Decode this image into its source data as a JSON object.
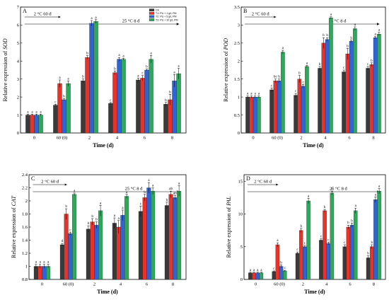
{
  "colors": {
    "series": [
      "#3a3a3a",
      "#e8322a",
      "#2f63d6",
      "#2ea85a"
    ],
    "axis": "#000000"
  },
  "chart_data": [
    {
      "type": "bar",
      "panel_letter": "A",
      "ylabel_prefix": "Relative expression of ",
      "ylabel_gene": "SOD",
      "xlabel": "Time (d)",
      "categories": [
        "0",
        "60 (0)",
        "2",
        "4",
        "6",
        "8"
      ],
      "ylim": [
        0,
        7
      ],
      "yticks": [
        0,
        1,
        2,
        3,
        4,
        5,
        6,
        7
      ],
      "annotations": {
        "cold_label": "2 °C 60 d",
        "storage_label": "25 °C 8 d"
      },
      "legend": {
        "placement": "top-right",
        "entries": [
          "CK",
          "T1: PU + 1 g/L PM",
          "T2: PU + 5 g/L PM",
          "T3: PU + 10 g/L PM"
        ]
      },
      "series": [
        {
          "name": "CK",
          "values": [
            1.0,
            1.55,
            2.9,
            1.65,
            2.95,
            1.6
          ],
          "errors": [
            0.05,
            0.05,
            0.1,
            0.05,
            0.1,
            0.1
          ],
          "letters": [
            "a",
            "c",
            "b",
            "c",
            "a",
            "b"
          ]
        },
        {
          "name": "T1: PU + 1 g/L PM",
          "values": [
            1.0,
            2.75,
            4.2,
            3.35,
            3.05,
            1.85
          ],
          "errors": [
            0.05,
            0.2,
            0.1,
            0.1,
            0.15,
            0.3
          ],
          "letters": [
            "a",
            "a",
            "b",
            "b",
            "c",
            "b"
          ]
        },
        {
          "name": "T2: PU + 5 g/L PM",
          "values": [
            1.0,
            1.85,
            6.1,
            4.1,
            3.5,
            2.9
          ],
          "errors": [
            0.05,
            0.05,
            0.15,
            0.1,
            0.05,
            0.35
          ],
          "letters": [
            "a",
            "b",
            "a",
            "a",
            "b",
            "a"
          ]
        },
        {
          "name": "T3: PU + 10 g/L PM",
          "values": [
            1.0,
            2.75,
            6.2,
            4.1,
            4.1,
            3.3
          ],
          "errors": [
            0.05,
            0.15,
            0.1,
            0.05,
            0.2,
            0.3
          ],
          "letters": [
            "a",
            "a",
            "a",
            "a",
            "a",
            "a"
          ]
        }
      ]
    },
    {
      "type": "bar",
      "panel_letter": "B",
      "ylabel_prefix": "Relative expression of ",
      "ylabel_gene": "POD",
      "xlabel": "Time (d)",
      "categories": [
        "0",
        "60 (0)",
        "2",
        "4",
        "6",
        "8"
      ],
      "ylim": [
        0,
        3.5
      ],
      "yticks": [
        0.0,
        0.5,
        1.0,
        1.5,
        2.0,
        2.5,
        3.0,
        3.5
      ],
      "annotations": {
        "cold_label": "2 °C 60 d",
        "storage_label": "25 °C 8 d"
      },
      "series": [
        {
          "name": "CK",
          "values": [
            1.0,
            1.2,
            1.05,
            1.8,
            1.7,
            1.8
          ],
          "errors": [
            0.03,
            0.05,
            0.05,
            0.05,
            0.05,
            0.05
          ],
          "letters": [
            "a",
            "c",
            "c",
            "b",
            "c",
            "c"
          ]
        },
        {
          "name": "T1: PU + 1 g/L PM",
          "values": [
            1.0,
            1.45,
            1.5,
            2.5,
            2.2,
            1.9
          ],
          "errors": [
            0.03,
            0.05,
            0.1,
            0.15,
            0.15,
            0.05
          ],
          "letters": [
            "a",
            "bc",
            "b",
            "b",
            "b",
            "b"
          ]
        },
        {
          "name": "T2: PU + 5 g/L PM",
          "values": [
            1.0,
            1.45,
            1.3,
            2.6,
            2.55,
            2.65
          ],
          "errors": [
            0.03,
            0.05,
            0.05,
            0.05,
            0.03,
            0.03
          ],
          "letters": [
            "a",
            "b",
            "c",
            "b",
            "b",
            "a"
          ]
        },
        {
          "name": "T3: PU + 10 g/L PM",
          "values": [
            1.0,
            2.25,
            1.85,
            3.2,
            2.9,
            2.75
          ],
          "errors": [
            0.03,
            0.05,
            0.03,
            0.03,
            0.05,
            0.05
          ],
          "letters": [
            "a",
            "a",
            "a",
            "a",
            "a",
            "a"
          ]
        }
      ]
    },
    {
      "type": "bar",
      "panel_letter": "C",
      "ylabel_prefix": "Relative expression of ",
      "ylabel_gene": "CAT",
      "xlabel": "Time (d)",
      "categories": [
        "0",
        "60 (0)",
        "2",
        "4",
        "6",
        "8"
      ],
      "ylim": [
        0.8,
        2.4
      ],
      "yticks": [
        0.8,
        1.0,
        1.2,
        1.4,
        1.6,
        1.8,
        2.0,
        2.2,
        2.4
      ],
      "annotations": {
        "cold_label": "2 °C 60 d",
        "storage_label": "25 °C 8 d"
      },
      "series": [
        {
          "name": "CK",
          "values": [
            1.0,
            1.33,
            1.57,
            1.66,
            1.84,
            1.93
          ],
          "errors": [
            0.03,
            0.02,
            0.05,
            0.08,
            0.08,
            0.05
          ],
          "letters": [
            "a",
            "d",
            "b",
            "a",
            "c",
            "b"
          ]
        },
        {
          "name": "T1: PU + 1 g/L PM",
          "values": [
            1.0,
            1.8,
            1.68,
            1.6,
            2.05,
            2.1
          ],
          "errors": [
            0.03,
            0.08,
            0.05,
            0.1,
            0.05,
            0.05
          ],
          "letters": [
            "a",
            "b",
            "b",
            "a",
            "b",
            "ab"
          ]
        },
        {
          "name": "T2: PU + 5 g/L PM",
          "values": [
            1.0,
            1.5,
            1.63,
            1.78,
            2.2,
            2.05
          ],
          "errors": [
            0.03,
            0.02,
            0.05,
            0.08,
            0.08,
            0.03
          ],
          "letters": [
            "a",
            "c",
            "b",
            "a",
            "a",
            "ab"
          ]
        },
        {
          "name": "T3: PU + 10 g/L PM",
          "values": [
            1.0,
            2.1,
            1.85,
            2.07,
            2.15,
            2.15
          ],
          "errors": [
            0.03,
            0.02,
            0.08,
            0.03,
            0.05,
            0.08
          ],
          "letters": [
            "a",
            "a",
            "a",
            "a",
            "a",
            "a"
          ]
        }
      ]
    },
    {
      "type": "bar",
      "panel_letter": "D",
      "ylabel_prefix": "Relative expression of ",
      "ylabel_gene": "PAL",
      "xlabel": "Time (d)",
      "categories": [
        "0",
        "60 (0)",
        "2",
        "4",
        "6",
        "8"
      ],
      "ylim": [
        0,
        16
      ],
      "yticks": [
        0,
        5,
        10,
        15
      ],
      "annotations": {
        "cold_label": "2 °C 60 d",
        "storage_label": "25 °C 8 d"
      },
      "series": [
        {
          "name": "CK",
          "values": [
            1.0,
            1.2,
            4.0,
            6.0,
            5.0,
            3.3
          ],
          "errors": [
            0.1,
            0.1,
            0.2,
            0.2,
            0.3,
            0.3
          ],
          "letters": [
            "a",
            "c",
            "c",
            "c",
            "c",
            "b"
          ]
        },
        {
          "name": "T1: PU + 1 g/L PM",
          "values": [
            1.0,
            5.3,
            7.5,
            10.5,
            8.0,
            5.0
          ],
          "errors": [
            0.1,
            0.3,
            0.3,
            0.2,
            0.3,
            0.3
          ],
          "letters": [
            "a",
            "a",
            "b",
            "b",
            "b",
            "b"
          ]
        },
        {
          "name": "T2: PU + 5 g/L PM",
          "values": [
            1.0,
            2.0,
            5.0,
            5.5,
            8.3,
            12.2
          ],
          "errors": [
            0.1,
            0.2,
            0.2,
            0.2,
            0.3,
            0.4
          ],
          "letters": [
            "a",
            "b",
            "c",
            "c",
            "b",
            "a"
          ]
        },
        {
          "name": "T3: PU + 10 g/L PM",
          "values": [
            1.0,
            1.3,
            12.0,
            13.2,
            10.5,
            13.5
          ],
          "errors": [
            0.1,
            0.1,
            0.4,
            0.3,
            0.4,
            0.4
          ],
          "letters": [
            "a",
            "c",
            "a",
            "a",
            "a",
            "a"
          ]
        }
      ]
    }
  ]
}
